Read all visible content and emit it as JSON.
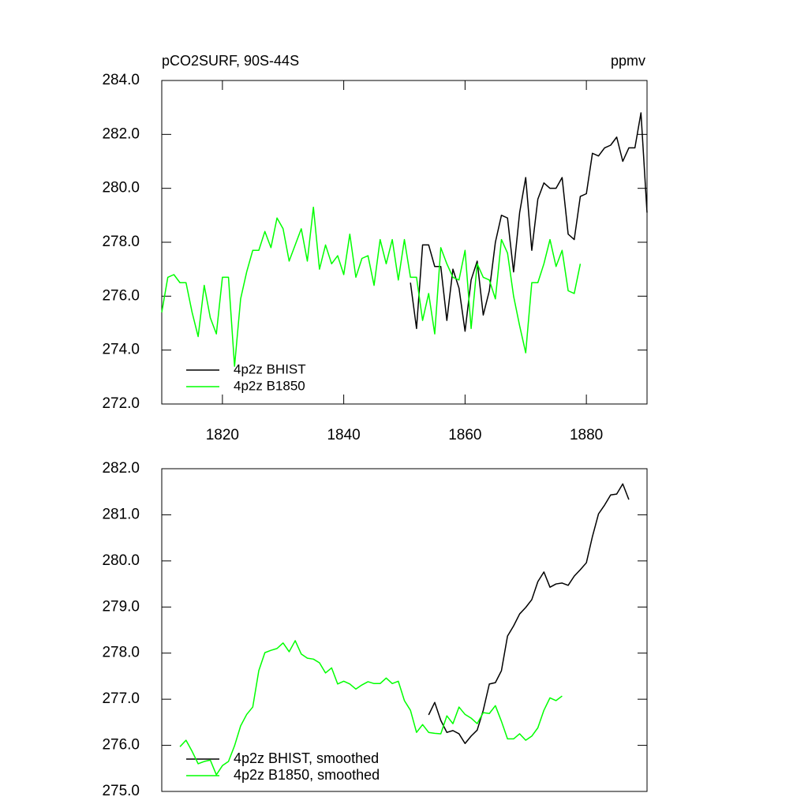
{
  "chart_data": [
    {
      "type": "line",
      "title": "pCO2SURF, 90S-44S",
      "units": "ppmv",
      "xlim": [
        1810,
        1890
      ],
      "xticks": [
        1820,
        1840,
        1860,
        1880
      ],
      "ylim": [
        272,
        284
      ],
      "yticks": [
        {
          "value": 272,
          "label": "272.0"
        },
        {
          "value": 274,
          "label": "274.0"
        },
        {
          "value": 276,
          "label": "276.0"
        },
        {
          "value": 278,
          "label": "278.0"
        },
        {
          "value": 280,
          "label": "280.0"
        },
        {
          "value": 282,
          "label": "282.0"
        },
        {
          "value": 284,
          "label": "284.0"
        }
      ],
      "legend": "lower left",
      "series": [
        {
          "name": "4p2z BHIST",
          "color": "#000000",
          "x": [
            1851,
            1852,
            1853,
            1854,
            1855,
            1856,
            1857,
            1858,
            1859,
            1860,
            1861,
            1862,
            1863,
            1864,
            1865,
            1866,
            1867,
            1868,
            1869,
            1870,
            1871,
            1872,
            1873,
            1874,
            1875,
            1876,
            1877,
            1878,
            1879,
            1880,
            1881,
            1882,
            1883,
            1884,
            1885,
            1886,
            1887,
            1888,
            1889,
            1890
          ],
          "values": [
            276.5,
            274.8,
            277.9,
            277.9,
            277.1,
            277.1,
            275.1,
            277.0,
            276.3,
            274.7,
            276.6,
            277.3,
            275.3,
            276.2,
            278.0,
            279.0,
            278.9,
            276.9,
            279.1,
            280.4,
            277.7,
            279.6,
            280.2,
            280.0,
            280.0,
            280.4,
            278.3,
            278.1,
            279.7,
            279.8,
            281.3,
            281.2,
            281.5,
            281.6,
            281.9,
            281.0,
            281.5,
            281.5,
            282.8,
            279.1
          ]
        },
        {
          "name": "4p2z B1850",
          "color": "#00ff00",
          "x": [
            1810,
            1811,
            1812,
            1813,
            1814,
            1815,
            1816,
            1817,
            1818,
            1819,
            1820,
            1821,
            1822,
            1823,
            1824,
            1825,
            1826,
            1827,
            1828,
            1829,
            1830,
            1831,
            1832,
            1833,
            1834,
            1835,
            1836,
            1837,
            1838,
            1839,
            1840,
            1841,
            1842,
            1843,
            1844,
            1845,
            1846,
            1847,
            1848,
            1849,
            1850,
            1851,
            1852,
            1853,
            1854,
            1855,
            1856,
            1857,
            1858,
            1859,
            1860,
            1861,
            1862,
            1863,
            1864,
            1865,
            1866,
            1867,
            1868,
            1869,
            1870,
            1871,
            1872,
            1873,
            1874,
            1875,
            1876,
            1877,
            1878,
            1879
          ],
          "values": [
            275.4,
            276.7,
            276.8,
            276.5,
            276.5,
            275.4,
            274.5,
            276.4,
            275.2,
            274.6,
            276.7,
            276.7,
            273.4,
            275.9,
            276.9,
            277.7,
            277.7,
            278.4,
            277.8,
            278.9,
            278.5,
            277.3,
            277.9,
            278.5,
            277.3,
            279.3,
            277.0,
            277.9,
            277.2,
            277.5,
            276.8,
            278.3,
            276.7,
            277.4,
            277.5,
            276.4,
            278.1,
            277.2,
            278.1,
            276.6,
            278.1,
            276.7,
            276.7,
            275.1,
            276.1,
            274.6,
            277.8,
            277.2,
            276.7,
            276.6,
            277.7,
            274.8,
            277.2,
            276.7,
            276.6,
            275.9,
            278.1,
            277.6,
            276.0,
            274.9,
            273.9,
            276.5,
            276.5,
            277.2,
            278.1,
            277.1,
            277.7,
            276.2,
            276.1,
            277.2
          ]
        }
      ]
    },
    {
      "type": "line",
      "xlim": [
        1810,
        1890
      ],
      "ylim": [
        275,
        282
      ],
      "yticks": [
        {
          "value": 275,
          "label": "275.0"
        },
        {
          "value": 276,
          "label": "276.0"
        },
        {
          "value": 277,
          "label": "277.0"
        },
        {
          "value": 278,
          "label": "278.0"
        },
        {
          "value": 279,
          "label": "279.0"
        },
        {
          "value": 280,
          "label": "280.0"
        },
        {
          "value": 281,
          "label": "281.0"
        },
        {
          "value": 282,
          "label": "282.0"
        }
      ],
      "legend": "lower left",
      "series": [
        {
          "name": "4p2z BHIST, smoothed",
          "color": "#000000",
          "x": [
            1854,
            1855,
            1856,
            1857,
            1858,
            1859,
            1860,
            1861,
            1862,
            1863,
            1864,
            1865,
            1866,
            1867,
            1868,
            1869,
            1870,
            1871,
            1872,
            1873,
            1874,
            1875,
            1876,
            1877,
            1878,
            1879,
            1880,
            1881,
            1882,
            1883,
            1884,
            1885,
            1886,
            1887
          ],
          "values": [
            276.66,
            276.93,
            276.54,
            276.28,
            276.32,
            276.25,
            276.04,
            276.2,
            276.33,
            276.76,
            277.33,
            277.36,
            277.62,
            278.37,
            278.59,
            278.85,
            278.99,
            279.16,
            279.55,
            279.76,
            279.43,
            279.5,
            279.52,
            279.47,
            279.67,
            279.81,
            279.96,
            280.53,
            281.02,
            281.21,
            281.43,
            281.45,
            281.67,
            281.33
          ]
        },
        {
          "name": "4p2z B1850, smoothed",
          "color": "#00ff00",
          "x": [
            1813,
            1814,
            1815,
            1816,
            1817,
            1818,
            1819,
            1820,
            1821,
            1822,
            1823,
            1824,
            1825,
            1826,
            1827,
            1828,
            1829,
            1830,
            1831,
            1832,
            1833,
            1834,
            1835,
            1836,
            1837,
            1838,
            1839,
            1840,
            1841,
            1842,
            1843,
            1844,
            1845,
            1846,
            1847,
            1848,
            1849,
            1850,
            1851,
            1852,
            1853,
            1854,
            1855,
            1856,
            1857,
            1858,
            1859,
            1860,
            1861,
            1862,
            1863,
            1864,
            1865,
            1866,
            1867,
            1868,
            1869,
            1870,
            1871,
            1872,
            1873,
            1874,
            1875,
            1876
          ],
          "values": [
            275.97,
            276.11,
            275.87,
            275.6,
            275.65,
            275.68,
            275.36,
            275.56,
            275.65,
            275.99,
            276.42,
            276.67,
            276.83,
            277.62,
            278.01,
            278.06,
            278.1,
            278.22,
            278.03,
            278.27,
            277.98,
            277.89,
            277.87,
            277.79,
            277.57,
            277.68,
            277.33,
            277.39,
            277.33,
            277.22,
            277.31,
            277.38,
            277.34,
            277.34,
            277.46,
            277.34,
            277.39,
            276.97,
            276.76,
            276.28,
            276.45,
            276.28,
            276.26,
            276.25,
            276.64,
            276.47,
            276.83,
            276.67,
            276.59,
            276.47,
            276.71,
            276.69,
            276.86,
            276.52,
            276.14,
            276.14,
            276.25,
            276.11,
            276.2,
            276.38,
            276.76,
            277.03,
            276.97,
            277.07
          ]
        }
      ]
    }
  ]
}
